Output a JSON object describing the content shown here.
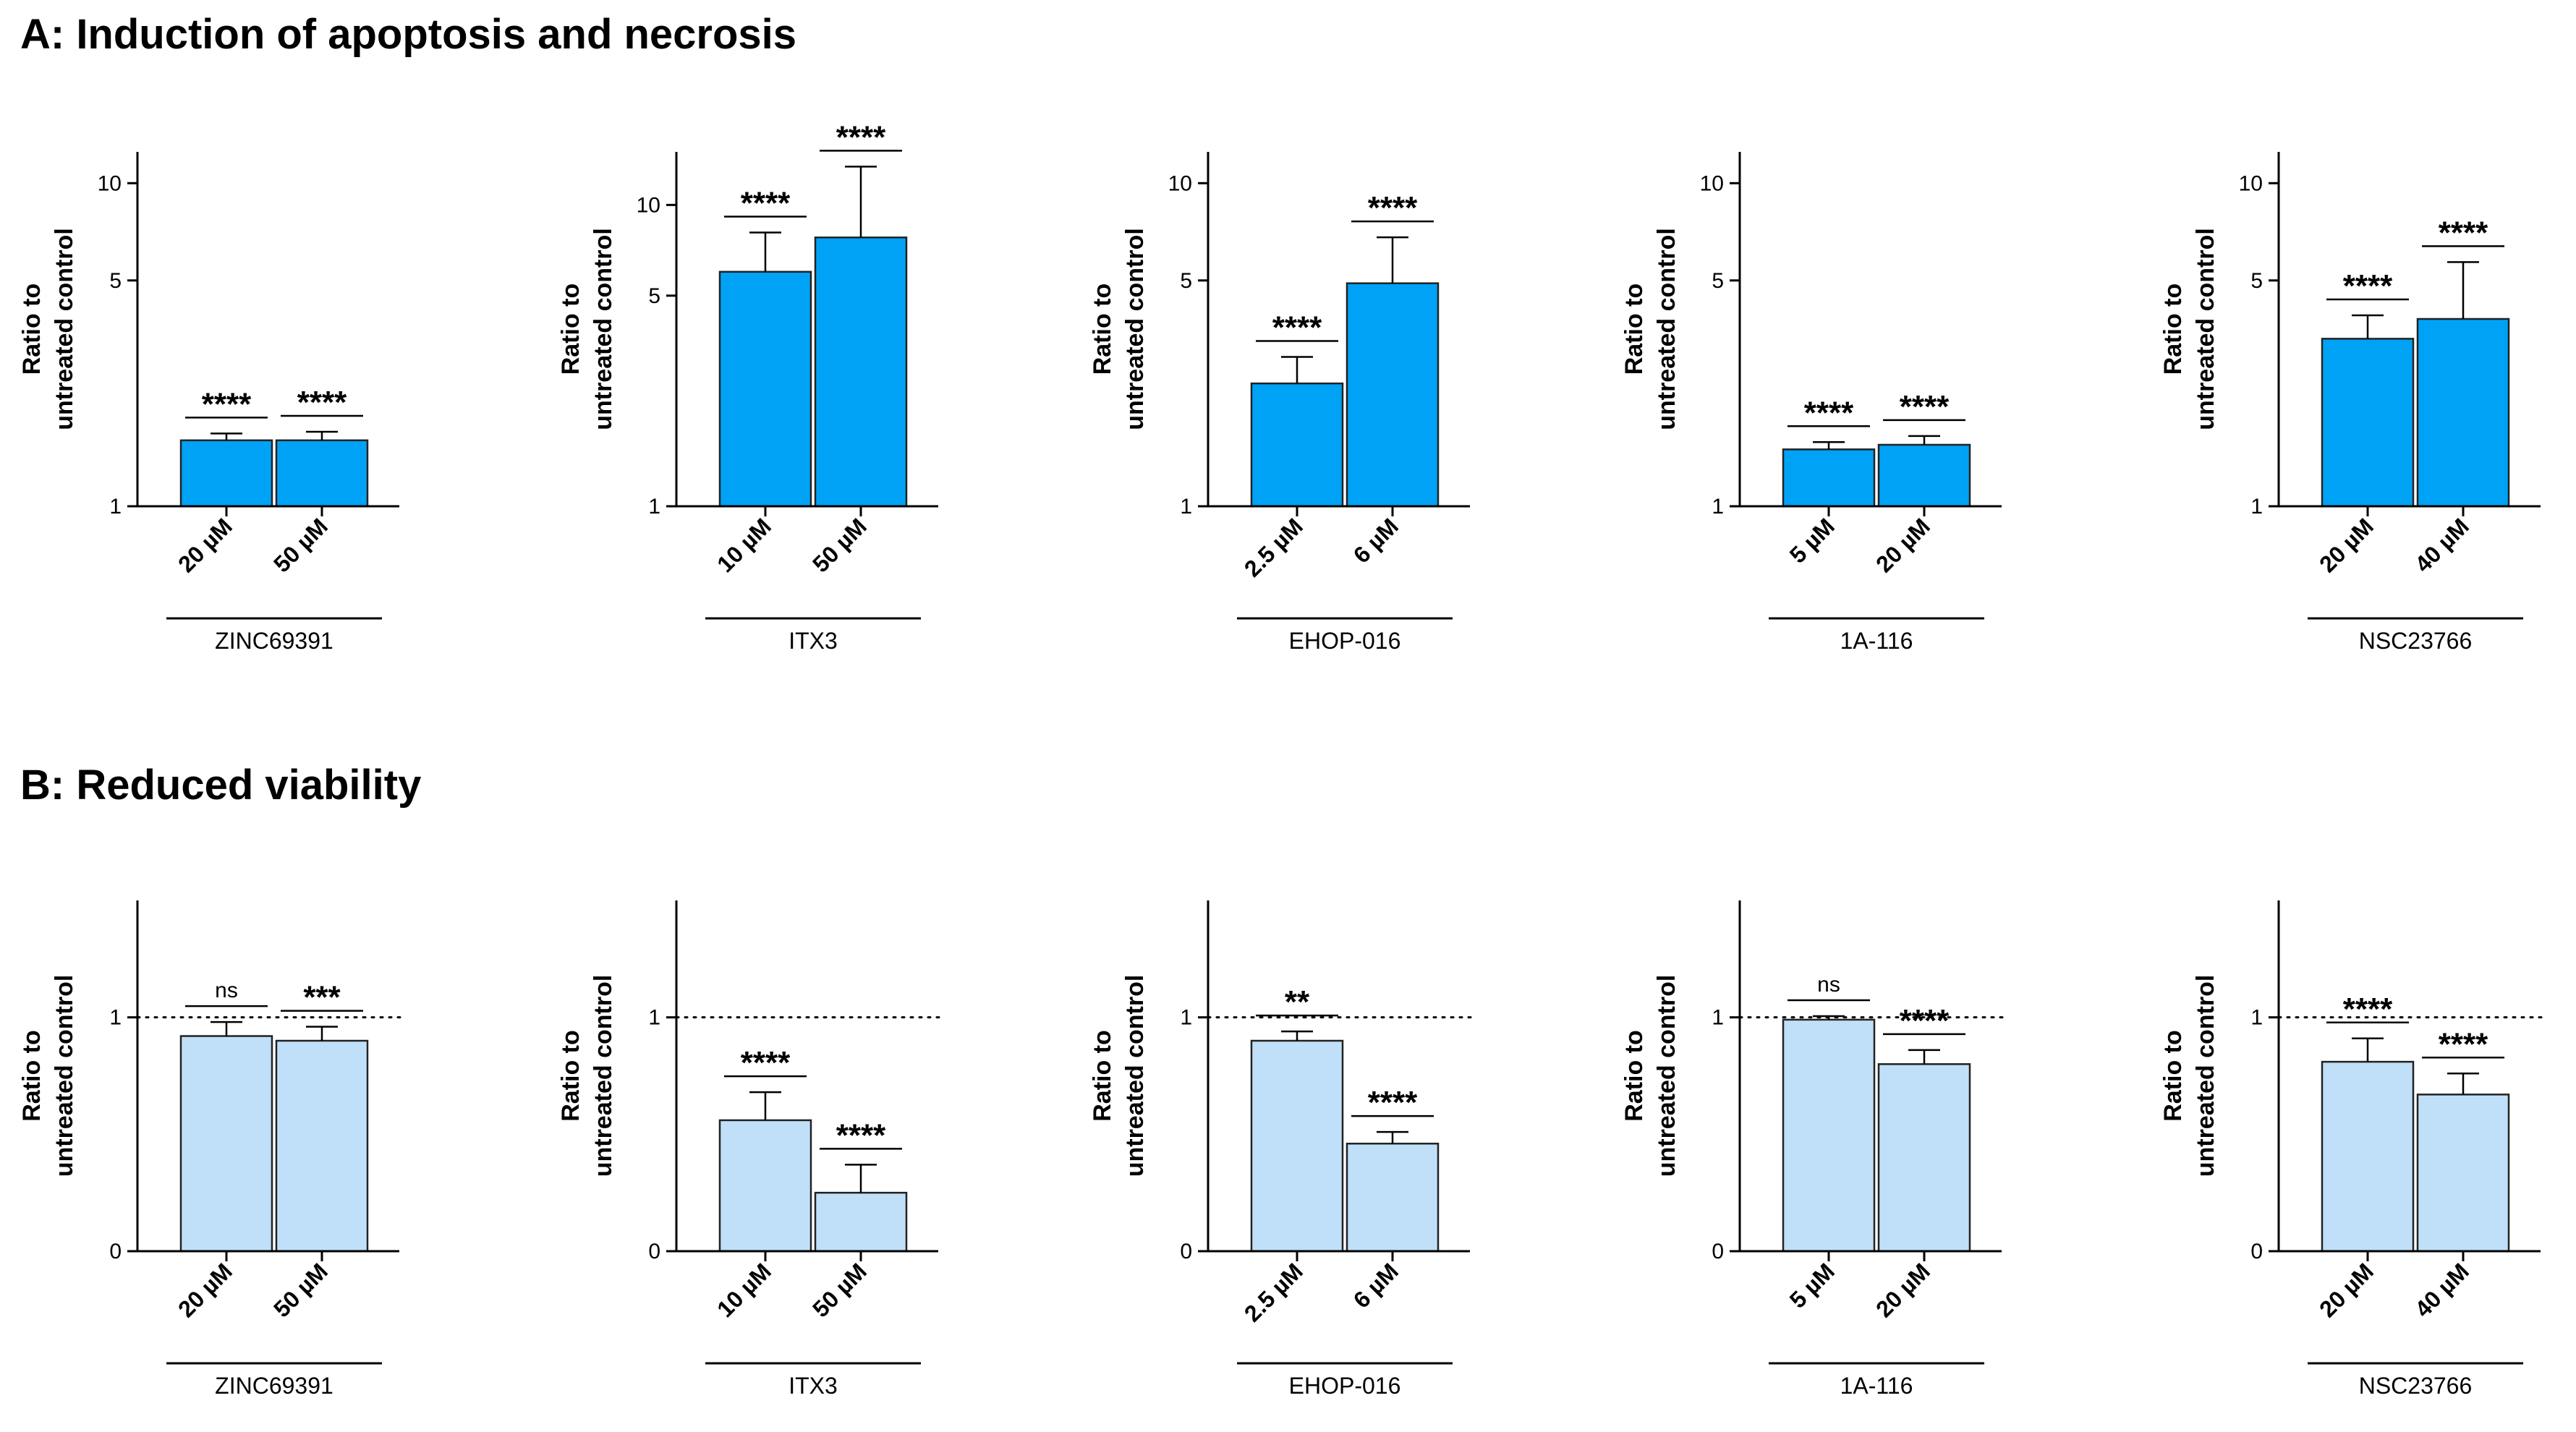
{
  "sections": {
    "a_title": "A: Induction of apoptosis and necrosis",
    "b_title": "B: Reduced viability"
  },
  "colors": {
    "bar_a": "#00A2F5",
    "bar_b": "#BFE0F8",
    "ink": "#000000"
  },
  "chart_data": [
    {
      "type": "bar",
      "section": "A",
      "ylabel_lines": [
        "Ratio to",
        "untreated control"
      ],
      "yscale": "log",
      "ylim": [
        1,
        12.5
      ],
      "yticks": [
        1,
        5,
        10
      ],
      "group": "ZINC69391",
      "categories": [
        "20 µM",
        "50 µM"
      ],
      "values": [
        1.6,
        1.6
      ],
      "errors": [
        0.08,
        0.1
      ],
      "significance": [
        "****",
        "****"
      ]
    },
    {
      "type": "bar",
      "section": "A",
      "ylabel_lines": [
        "Ratio to",
        "untreated control"
      ],
      "yscale": "log",
      "ylim": [
        1,
        15
      ],
      "yticks": [
        1,
        5,
        10
      ],
      "group": "ITX3",
      "categories": [
        "10 µM",
        "50 µM"
      ],
      "values": [
        6.0,
        7.8
      ],
      "errors": [
        2.1,
        5.6
      ],
      "significance": [
        "****",
        "****"
      ]
    },
    {
      "type": "bar",
      "section": "A",
      "ylabel_lines": [
        "Ratio to",
        "untreated control"
      ],
      "yscale": "log",
      "ylim": [
        1,
        12.5
      ],
      "yticks": [
        1,
        5,
        10
      ],
      "group": "EHOP-016",
      "categories": [
        "2.5 µM",
        "6 µM"
      ],
      "values": [
        2.4,
        4.9
      ],
      "errors": [
        0.5,
        1.9
      ],
      "significance": [
        "****",
        "****"
      ]
    },
    {
      "type": "bar",
      "section": "A",
      "ylabel_lines": [
        "Ratio to",
        "untreated control"
      ],
      "yscale": "log",
      "ylim": [
        1,
        12.5
      ],
      "yticks": [
        1,
        5,
        10
      ],
      "group": "1A-116",
      "categories": [
        "5 µM",
        "20 µM"
      ],
      "values": [
        1.5,
        1.55
      ],
      "errors": [
        0.08,
        0.1
      ],
      "significance": [
        "****",
        "****"
      ]
    },
    {
      "type": "bar",
      "section": "A",
      "ylabel_lines": [
        "Ratio to",
        "untreated control"
      ],
      "yscale": "log",
      "ylim": [
        1,
        12.5
      ],
      "yticks": [
        1,
        5,
        10
      ],
      "group": "NSC23766",
      "categories": [
        "20 µM",
        "40 µM"
      ],
      "values": [
        3.3,
        3.8
      ],
      "errors": [
        0.6,
        1.9
      ],
      "significance": [
        "****",
        "****"
      ]
    },
    {
      "type": "bar",
      "section": "B",
      "ylabel_lines": [
        "Ratio to",
        "untreated control"
      ],
      "yscale": "linear",
      "ylim": [
        0,
        1.5
      ],
      "yticks": [
        0,
        1
      ],
      "reference_line": 1,
      "group": "ZINC69391",
      "categories": [
        "20 µM",
        "50 µM"
      ],
      "values": [
        0.92,
        0.9
      ],
      "errors": [
        0.06,
        0.06
      ],
      "significance": [
        "ns",
        "***"
      ]
    },
    {
      "type": "bar",
      "section": "B",
      "ylabel_lines": [
        "Ratio to",
        "untreated control"
      ],
      "yscale": "linear",
      "ylim": [
        0,
        1.5
      ],
      "yticks": [
        0,
        1
      ],
      "reference_line": 1,
      "group": "ITX3",
      "categories": [
        "10 µM",
        "50 µM"
      ],
      "values": [
        0.56,
        0.25
      ],
      "errors": [
        0.12,
        0.12
      ],
      "significance": [
        "****",
        "****"
      ]
    },
    {
      "type": "bar",
      "section": "B",
      "ylabel_lines": [
        "Ratio to",
        "untreated control"
      ],
      "yscale": "linear",
      "ylim": [
        0,
        1.5
      ],
      "yticks": [
        0,
        1
      ],
      "reference_line": 1,
      "group": "EHOP-016",
      "categories": [
        "2.5 µM",
        "6 µM"
      ],
      "values": [
        0.9,
        0.46
      ],
      "errors": [
        0.04,
        0.05
      ],
      "significance": [
        "**",
        "****"
      ]
    },
    {
      "type": "bar",
      "section": "B",
      "ylabel_lines": [
        "Ratio to",
        "untreated control"
      ],
      "yscale": "linear",
      "ylim": [
        0,
        1.5
      ],
      "yticks": [
        0,
        1
      ],
      "reference_line": 1,
      "group": "1A-116",
      "categories": [
        "5 µM",
        "20 µM"
      ],
      "values": [
        0.99,
        0.8
      ],
      "errors": [
        0.015,
        0.06
      ],
      "significance": [
        "ns",
        "****"
      ]
    },
    {
      "type": "bar",
      "section": "B",
      "ylabel_lines": [
        "Ratio to",
        "untreated control"
      ],
      "yscale": "linear",
      "ylim": [
        0,
        1.5
      ],
      "yticks": [
        0,
        1
      ],
      "reference_line": 1,
      "group": "NSC23766",
      "categories": [
        "20 µM",
        "40 µM"
      ],
      "values": [
        0.81,
        0.67
      ],
      "errors": [
        0.1,
        0.09
      ],
      "significance": [
        "****",
        "****"
      ]
    }
  ]
}
